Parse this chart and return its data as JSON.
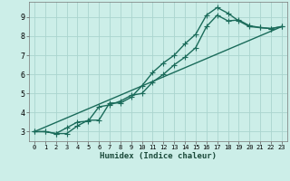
{
  "xlabel": "Humidex (Indice chaleur)",
  "bg_color": "#cceee8",
  "grid_color": "#aad4ce",
  "line_color": "#1a6b5a",
  "x_ticks": [
    0,
    1,
    2,
    3,
    4,
    5,
    6,
    7,
    8,
    9,
    10,
    11,
    12,
    13,
    14,
    15,
    16,
    17,
    18,
    19,
    20,
    21,
    22,
    23
  ],
  "y_ticks": [
    3,
    4,
    5,
    6,
    7,
    8,
    9
  ],
  "xlim": [
    -0.5,
    23.5
  ],
  "ylim": [
    2.5,
    9.8
  ],
  "line1_x": [
    0,
    1,
    2,
    3,
    4,
    5,
    6,
    7,
    8,
    9,
    10,
    11,
    12,
    13,
    14,
    15,
    16,
    17,
    18,
    19,
    20,
    21,
    22,
    23
  ],
  "line1_y": [
    3.0,
    3.0,
    2.9,
    2.9,
    3.3,
    3.6,
    3.6,
    4.5,
    4.5,
    4.8,
    5.4,
    6.1,
    6.6,
    7.0,
    7.6,
    8.1,
    9.1,
    9.5,
    9.2,
    8.8,
    8.5,
    8.45,
    8.4,
    8.5
  ],
  "line2_x": [
    0,
    1,
    2,
    3,
    4,
    5,
    6,
    7,
    8,
    9,
    10,
    11,
    12,
    13,
    14,
    15,
    16,
    17,
    18,
    19,
    20,
    21,
    22,
    23
  ],
  "line2_y": [
    3.0,
    3.0,
    2.9,
    3.2,
    3.5,
    3.55,
    4.3,
    4.4,
    4.6,
    4.9,
    5.0,
    5.6,
    6.0,
    6.5,
    6.9,
    7.4,
    8.5,
    9.1,
    8.8,
    8.85,
    8.55,
    8.45,
    8.4,
    8.5
  ],
  "line3_x": [
    0,
    23
  ],
  "line3_y": [
    3.0,
    8.5
  ],
  "marker_size": 2.5,
  "line_width": 1.0
}
